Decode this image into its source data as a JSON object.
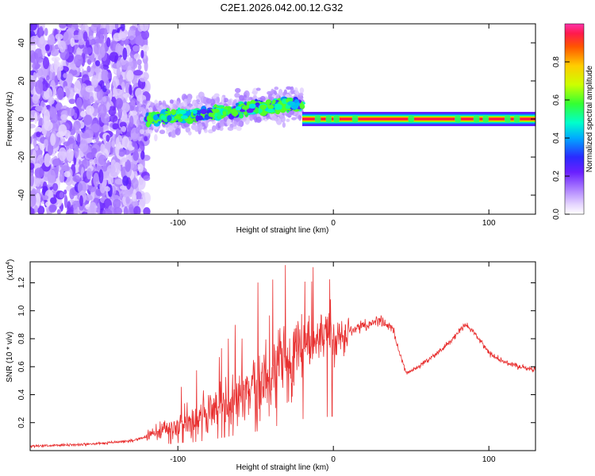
{
  "title": "C2E1.2026.042.00.12.G32",
  "chart_data": [
    {
      "type": "heatmap",
      "name": "spectrogram",
      "xlabel": "Height of straight line (km)",
      "ylabel": "Frequency (Hz)",
      "xlim": [
        -195,
        130
      ],
      "ylim": [
        -50,
        50
      ],
      "xticks": [
        -100,
        0,
        100
      ],
      "yticks": [
        -40,
        -20,
        0,
        20,
        40
      ],
      "colorbar": {
        "label": "Normalized spectral amplitude",
        "range": [
          0,
          1
        ],
        "ticks": [
          0.0,
          0.2,
          0.4,
          0.6,
          0.8
        ]
      },
      "regions": [
        {
          "x": [
            -195,
            -120
          ],
          "description": "broadband noise across all frequencies",
          "amplitude": 0.15
        },
        {
          "x": [
            -120,
            -20
          ],
          "freq_start": 0,
          "freq_end": 8,
          "amplitude": 0.45
        },
        {
          "x": [
            -20,
            130
          ],
          "freq": 0,
          "amplitude": 0.95
        }
      ]
    },
    {
      "type": "line",
      "name": "snr",
      "xlabel": "Height of straight line (km)",
      "ylabel": "SNR (10 * v/v)",
      "y_multiplier": "(x10",
      "y_multiplier_exp": "4",
      "y_multiplier_close": ")",
      "xlim": [
        -195,
        130
      ],
      "ylim": [
        0,
        1.35
      ],
      "xticks": [
        -100,
        0,
        100
      ],
      "yticks": [
        0.2,
        0.4,
        0.6,
        0.8,
        1.0,
        1.2
      ],
      "color": "#e83030",
      "series_points": [
        [
          -195,
          0.03
        ],
        [
          -170,
          0.04
        ],
        [
          -150,
          0.05
        ],
        [
          -130,
          0.07
        ],
        [
          -120,
          0.1
        ],
        [
          -110,
          0.15
        ],
        [
          -100,
          0.18
        ],
        [
          -90,
          0.2
        ],
        [
          -80,
          0.25
        ],
        [
          -70,
          0.32
        ],
        [
          -60,
          0.38
        ],
        [
          -50,
          0.45
        ],
        [
          -40,
          0.55
        ],
        [
          -30,
          0.65
        ],
        [
          -20,
          0.75
        ],
        [
          -10,
          0.78
        ],
        [
          0,
          0.82
        ],
        [
          10,
          0.85
        ],
        [
          20,
          0.9
        ],
        [
          30,
          0.93
        ],
        [
          38,
          0.88
        ],
        [
          42,
          0.72
        ],
        [
          47,
          0.55
        ],
        [
          55,
          0.6
        ],
        [
          65,
          0.68
        ],
        [
          75,
          0.78
        ],
        [
          85,
          0.9
        ],
        [
          90,
          0.85
        ],
        [
          100,
          0.7
        ],
        [
          110,
          0.63
        ],
        [
          120,
          0.6
        ],
        [
          130,
          0.58
        ]
      ]
    }
  ]
}
